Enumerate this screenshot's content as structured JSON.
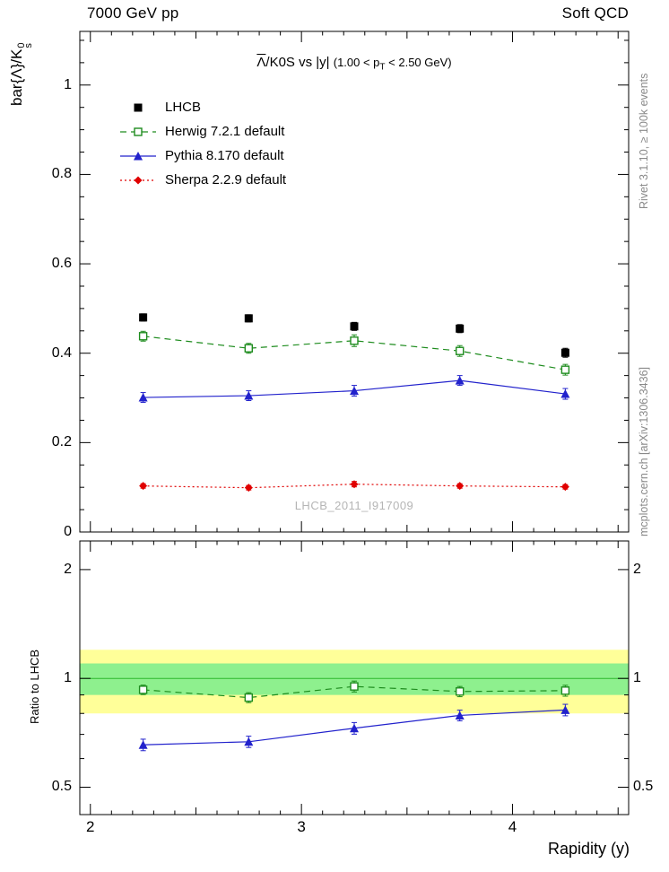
{
  "header": {
    "left": "7000 GeV pp",
    "right": "Soft QCD"
  },
  "title": {
    "lambda": "Λ",
    "rest": "/K0S vs |y|",
    "paren_pre": "(1.00 < p",
    "paren_sub": "T",
    "paren_post": " < 2.50 GeV)"
  },
  "ylabel": {
    "pre": "bar{Λ}/K",
    "sup": "0",
    "sub": "s"
  },
  "ratio_ylabel": "Ratio to LHCB",
  "xlabel": "Rapidity (y)",
  "watermark": "LHCB_2011_I917009",
  "right_notes": {
    "top": "Rivet 3.1.10, ≥ 100k events",
    "bottom": "mcplots.cern.ch [arXiv:1306.3436]"
  },
  "chart_data": [
    {
      "type": "line",
      "title": "Λ/K0S vs |y| (1.00 < pT < 2.50 GeV)",
      "xlabel": "Rapidity (y)",
      "ylabel": "bar{Λ}/K0s",
      "xlim": [
        1.95,
        4.55
      ],
      "ylim": [
        0,
        1.12
      ],
      "grid": false,
      "legend_position": "top-left",
      "x_ticks_major": [
        2,
        3,
        4
      ],
      "x_tick_labels": [
        "2",
        "3",
        "4"
      ],
      "y_ticks_major": [
        0,
        0.2,
        0.4,
        0.6,
        0.8,
        1
      ],
      "y_tick_labels": [
        "0",
        "0.2",
        "0.4",
        "0.6",
        "0.8",
        "1"
      ],
      "x": [
        2.25,
        2.75,
        3.25,
        3.75,
        4.25
      ],
      "series": [
        {
          "name": "LHCB",
          "color": "#000000",
          "marker": "filled-square",
          "msize": 9,
          "line": "none",
          "values": [
            0.48,
            0.478,
            0.46,
            0.455,
            0.401
          ],
          "errors": [
            0.008,
            0.008,
            0.009,
            0.009,
            0.01
          ]
        },
        {
          "name": "Herwig 7.2.1 default",
          "color": "#1e8c1e",
          "marker": "open-square",
          "msize": 8,
          "line": "dashed",
          "values": [
            0.438,
            0.411,
            0.428,
            0.405,
            0.363
          ],
          "errors": [
            0.011,
            0.011,
            0.013,
            0.012,
            0.012
          ]
        },
        {
          "name": "Pythia 8.170 default",
          "color": "#2222cc",
          "marker": "filled-triangle",
          "msize": 9,
          "line": "solid",
          "values": [
            0.301,
            0.305,
            0.316,
            0.339,
            0.309
          ],
          "errors": [
            0.011,
            0.011,
            0.012,
            0.011,
            0.012
          ]
        },
        {
          "name": "Sherpa 2.2.9 default",
          "color": "#e00000",
          "marker": "filled-diamond",
          "msize": 7,
          "line": "dotted",
          "values": [
            0.103,
            0.099,
            0.107,
            0.103,
            0.101
          ],
          "errors": [
            0.005,
            0.005,
            0.006,
            0.005,
            0.005
          ]
        }
      ]
    },
    {
      "type": "ratio",
      "ylabel": "Ratio to LHCB",
      "yscale": "log",
      "xlim": [
        1.95,
        4.55
      ],
      "ylim": [
        0.42,
        2.4
      ],
      "y_ticks_major": [
        0.5,
        1,
        2
      ],
      "y_tick_labels": [
        "0.5",
        "1",
        "2"
      ],
      "y_ticks_minor": [
        0.6,
        0.7,
        0.8,
        0.9
      ],
      "x_ticks_major": [
        2,
        3,
        4
      ],
      "x_tick_labels": [
        "2",
        "3",
        "4"
      ],
      "bands": [
        {
          "lo": 0.8,
          "hi": 1.2,
          "color": "#ffff99"
        },
        {
          "lo": 0.9,
          "hi": 1.1,
          "color": "#8ef08e"
        }
      ],
      "reference_line": {
        "y": 1,
        "color": "#2db82d"
      },
      "x": [
        2.25,
        2.75,
        3.25,
        3.75,
        4.25
      ],
      "series": [
        {
          "name": "Herwig 7.2.1 default",
          "color": "#1e8c1e",
          "marker": "open-square",
          "msize": 8,
          "line": "dashed",
          "values": [
            0.93,
            0.885,
            0.95,
            0.92,
            0.925
          ],
          "errors": [
            0.028,
            0.028,
            0.033,
            0.03,
            0.032
          ]
        },
        {
          "name": "Pythia 8.170 default",
          "color": "#2222cc",
          "marker": "filled-triangle",
          "msize": 9,
          "line": "solid",
          "values": [
            0.655,
            0.668,
            0.728,
            0.79,
            0.818
          ],
          "errors": [
            0.024,
            0.024,
            0.027,
            0.027,
            0.03
          ]
        }
      ]
    }
  ]
}
